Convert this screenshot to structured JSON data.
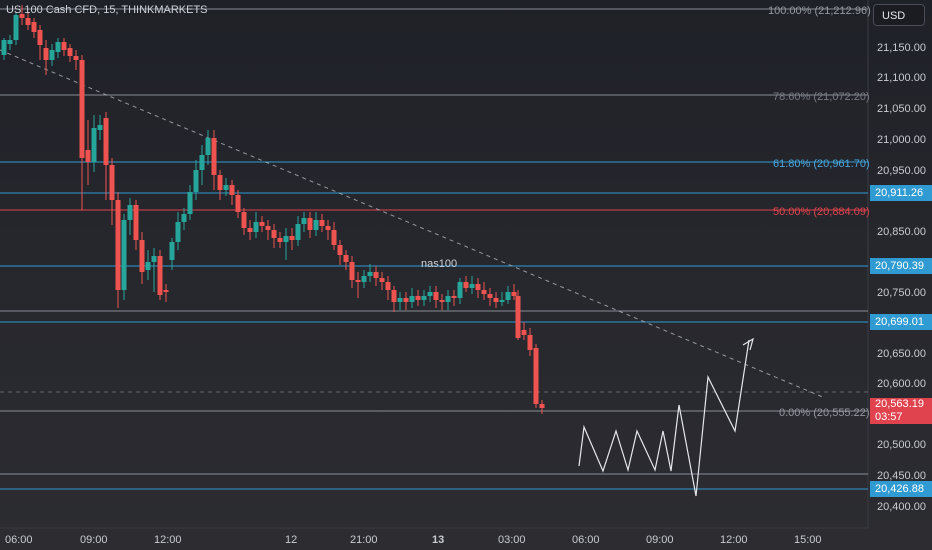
{
  "header": {
    "symbol_title": "US 100 Cash CFD, 15, THINKMARKETS",
    "currency_button": "USD"
  },
  "colors": {
    "bull": "#26a69a",
    "bear": "#ef5350",
    "blue_line": "#2f9bd2",
    "red_line": "#e0424e",
    "gray_line": "#8a8d96"
  },
  "annotation": {
    "label": "nas100"
  },
  "price_axis": {
    "labels": [
      "21,150.00",
      "21,100.00",
      "21,050.00",
      "21,000.00",
      "20,950.00",
      "20,850.00",
      "20,750.00",
      "20,650.00",
      "20,600.00",
      "20,500.00",
      "20,450.00",
      "20,400.00"
    ]
  },
  "time_axis": {
    "labels": [
      "06:00",
      "09:00",
      "12:00",
      "12",
      "21:00",
      "13",
      "03:00",
      "06:00",
      "09:00",
      "12:00",
      "15:00"
    ]
  },
  "fib_levels": [
    {
      "label": "100.00% (21,212.96)",
      "color": "gray"
    },
    {
      "label": "78.60% (21,072.20)",
      "color": "gray"
    },
    {
      "label": "61.80% (20,961.70)",
      "color": "blue"
    },
    {
      "label": "50.00% (20,884.09)",
      "color": "red"
    },
    {
      "label": "0.00% (20,555.22)",
      "color": "gray"
    }
  ],
  "price_tags": {
    "level_1": "20,911.26",
    "level_2": "20,790.39",
    "level_3": "20,699.01",
    "level_4": "20,426.88",
    "current_price": "20,563.19",
    "countdown": "03:57"
  }
}
